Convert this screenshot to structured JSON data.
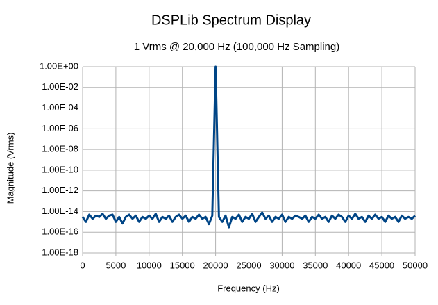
{
  "chart_data": {
    "type": "line",
    "title": "DSPLib Spectrum Display",
    "subtitle": "1 Vrms @ 20,000 Hz (100,000 Hz Sampling)",
    "x_label": "Frequency (Hz)",
    "y_label": "Magnitude (Vrms)",
    "color": "#004586",
    "ylog": true,
    "grid": true,
    "xlim": [
      0,
      50000
    ],
    "xticks": [
      0,
      5000,
      10000,
      15000,
      20000,
      25000,
      30000,
      35000,
      40000,
      45000,
      50000
    ],
    "ylim": [
      1e-18,
      1
    ],
    "yticks": [
      {
        "value": 1,
        "label": "1.00E+00"
      },
      {
        "value": 0.01,
        "label": "1.00E-02"
      },
      {
        "value": 0.0001,
        "label": "1.00E-04"
      },
      {
        "value": 1e-06,
        "label": "1.00E-06"
      },
      {
        "value": 1e-08,
        "label": "1.00E-08"
      },
      {
        "value": 1e-10,
        "label": "1.00E-10"
      },
      {
        "value": 1e-12,
        "label": "1.00E-12"
      },
      {
        "value": 1e-14,
        "label": "1.00E-14"
      },
      {
        "value": 1e-16,
        "label": "1.00E-16"
      },
      {
        "value": 1e-18,
        "label": "1.00E-18"
      }
    ],
    "x": [
      0,
      500,
      1000,
      1500,
      2000,
      2500,
      3000,
      3500,
      4000,
      4500,
      5000,
      5500,
      6000,
      6500,
      7000,
      7500,
      8000,
      8500,
      9000,
      9500,
      10000,
      10500,
      11000,
      11500,
      12000,
      12500,
      13000,
      13500,
      14000,
      14500,
      15000,
      15500,
      16000,
      16500,
      17000,
      17500,
      18000,
      18500,
      19000,
      19500,
      20000,
      20500,
      21000,
      21500,
      22000,
      22500,
      23000,
      23500,
      24000,
      24500,
      25000,
      25500,
      26000,
      26500,
      27000,
      27500,
      28000,
      28500,
      29000,
      29500,
      30000,
      30500,
      31000,
      31500,
      32000,
      32500,
      33000,
      33500,
      34000,
      34500,
      35000,
      35500,
      36000,
      36500,
      37000,
      37500,
      38000,
      38500,
      39000,
      39500,
      40000,
      40500,
      41000,
      41500,
      42000,
      42500,
      43000,
      43500,
      44000,
      44500,
      45000,
      45500,
      46000,
      46500,
      47000,
      47500,
      48000,
      48500,
      49000,
      49500,
      50000
    ],
    "values": [
      3e-15,
      1e-15,
      5e-15,
      2e-15,
      4e-15,
      3e-15,
      6e-15,
      2e-15,
      4e-15,
      5e-15,
      1e-15,
      3e-15,
      7e-16,
      3e-15,
      5e-15,
      2e-15,
      4e-15,
      1e-15,
      3e-15,
      2e-15,
      4e-15,
      2e-15,
      6e-15,
      1e-15,
      3e-15,
      2e-15,
      4e-15,
      1e-15,
      3e-15,
      5e-15,
      2e-15,
      4e-15,
      1e-15,
      3e-15,
      2e-15,
      5e-15,
      2e-15,
      3e-15,
      6e-16,
      4e-15,
      1,
      3e-15,
      1e-15,
      4e-15,
      3e-16,
      3e-15,
      2e-15,
      5e-15,
      1e-15,
      3e-15,
      2e-15,
      6e-15,
      1e-15,
      3e-15,
      8e-15,
      2e-15,
      4e-15,
      1e-15,
      3e-15,
      2e-15,
      5e-15,
      1e-15,
      3e-15,
      2e-15,
      4e-15,
      3e-15,
      2e-15,
      4e-15,
      1e-15,
      3e-15,
      2e-15,
      5e-15,
      2e-15,
      3e-15,
      1e-15,
      4e-15,
      2e-15,
      5e-15,
      3e-15,
      1e-15,
      4e-15,
      2e-15,
      6e-15,
      2e-15,
      3e-15,
      1e-15,
      4e-15,
      2e-15,
      5e-15,
      2e-15,
      3e-15,
      1e-15,
      4e-15,
      2e-15,
      3e-15,
      1e-15,
      4e-15,
      2e-15,
      3e-15,
      2e-15,
      4e-15
    ]
  }
}
